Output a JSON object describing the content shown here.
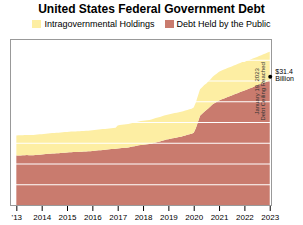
{
  "chart_data": {
    "type": "area",
    "stacked": true,
    "title": "United States Federal Government Debt",
    "x": [
      2013.0,
      2013.083,
      2013.167,
      2013.25,
      2013.333,
      2013.417,
      2013.5,
      2013.583,
      2013.667,
      2013.75,
      2013.833,
      2013.917,
      2014.0,
      2014.083,
      2014.167,
      2014.25,
      2014.333,
      2014.417,
      2014.5,
      2014.583,
      2014.667,
      2014.75,
      2014.833,
      2014.917,
      2015.0,
      2015.083,
      2015.167,
      2015.25,
      2015.333,
      2015.417,
      2015.5,
      2015.583,
      2015.667,
      2015.75,
      2015.833,
      2015.917,
      2016.0,
      2016.083,
      2016.167,
      2016.25,
      2016.333,
      2016.417,
      2016.5,
      2016.583,
      2016.667,
      2016.75,
      2016.833,
      2016.917,
      2017.0,
      2017.083,
      2017.167,
      2017.25,
      2017.333,
      2017.417,
      2017.5,
      2017.583,
      2017.667,
      2017.75,
      2017.833,
      2017.917,
      2018.0,
      2018.083,
      2018.167,
      2018.25,
      2018.333,
      2018.417,
      2018.5,
      2018.583,
      2018.667,
      2018.75,
      2018.833,
      2018.917,
      2019.0,
      2019.083,
      2019.167,
      2019.25,
      2019.333,
      2019.417,
      2019.5,
      2019.583,
      2019.667,
      2019.75,
      2019.833,
      2019.917,
      2020.0,
      2020.083,
      2020.167,
      2020.25,
      2020.333,
      2020.417,
      2020.5,
      2020.583,
      2020.667,
      2020.75,
      2020.833,
      2020.917,
      2021.0,
      2021.083,
      2021.167,
      2021.25,
      2021.333,
      2021.417,
      2021.5,
      2021.583,
      2021.667,
      2021.75,
      2021.833,
      2021.917,
      2022.0,
      2022.083,
      2022.167,
      2022.25,
      2022.333,
      2022.417,
      2022.5,
      2022.583,
      2022.667,
      2022.75,
      2022.833,
      2022.917,
      2023.0
    ],
    "series": [
      {
        "name": "Debt Held by the Public",
        "color": "#C97B6E",
        "values": [
          11.9,
          11.93,
          11.95,
          11.97,
          12.0,
          12.02,
          11.97,
          11.99,
          12.01,
          12.04,
          12.08,
          12.12,
          12.17,
          12.22,
          12.27,
          12.32,
          12.37,
          12.4,
          12.43,
          12.47,
          12.5,
          12.53,
          12.57,
          12.62,
          12.67,
          12.7,
          12.73,
          12.76,
          12.78,
          12.8,
          12.83,
          12.85,
          12.87,
          12.89,
          12.93,
          12.98,
          13.02,
          13.07,
          13.12,
          13.17,
          13.22,
          13.27,
          13.32,
          13.37,
          13.42,
          13.47,
          13.52,
          13.57,
          13.62,
          13.67,
          13.72,
          13.77,
          13.82,
          13.87,
          13.97,
          14.07,
          14.17,
          14.27,
          14.37,
          14.47,
          14.52,
          14.57,
          14.62,
          14.67,
          14.77,
          14.92,
          15.07,
          15.17,
          15.32,
          15.47,
          15.62,
          15.77,
          15.87,
          15.97,
          16.07,
          16.17,
          16.27,
          16.37,
          16.47,
          16.62,
          16.77,
          16.92,
          17.07,
          17.17,
          17.4,
          18.5,
          20.0,
          21.5,
          22.0,
          22.5,
          22.9,
          23.3,
          23.8,
          24.3,
          24.6,
          24.9,
          25.2,
          25.4,
          25.6,
          25.8,
          26.0,
          26.2,
          26.4,
          26.6,
          26.8,
          27.0,
          27.2,
          27.4,
          27.6,
          27.8,
          28.0,
          28.2,
          28.4,
          28.6,
          28.8,
          29.0,
          29.2,
          29.4,
          29.6,
          29.8,
          30.0
        ]
      },
      {
        "name": "Intragovernmental Holdings",
        "color": "#FDEEA3",
        "values": [
          4.85,
          4.85,
          4.86,
          4.86,
          4.87,
          4.87,
          4.88,
          4.88,
          4.88,
          4.89,
          4.89,
          4.9,
          4.9,
          4.9,
          4.91,
          4.91,
          4.91,
          4.92,
          4.92,
          4.93,
          4.93,
          4.93,
          4.94,
          4.95,
          4.95,
          4.95,
          4.96,
          4.96,
          4.96,
          4.97,
          4.97,
          4.98,
          4.98,
          4.99,
          4.99,
          5.0,
          5.0,
          5.0,
          5.01,
          5.01,
          5.01,
          5.02,
          5.02,
          5.02,
          5.03,
          5.03,
          5.04,
          5.05,
          5.55,
          5.58,
          5.6,
          5.62,
          5.64,
          5.67,
          5.69,
          5.71,
          5.73,
          5.75,
          5.77,
          5.79,
          5.8,
          5.81,
          5.82,
          5.84,
          5.86,
          5.87,
          5.88,
          5.89,
          5.9,
          5.91,
          5.92,
          5.93,
          5.94,
          5.95,
          5.96,
          5.97,
          5.98,
          5.99,
          5.99,
          6.0,
          6.0,
          6.0,
          6.01,
          6.02,
          6.1,
          6.2,
          6.3,
          6.4,
          6.4,
          6.4,
          6.4,
          6.5,
          6.5,
          6.6,
          6.7,
          6.8,
          6.9,
          6.95,
          6.97,
          6.98,
          6.99,
          7.0,
          7.0,
          7.01,
          7.01,
          7.02,
          7.02,
          7.03,
          6.85,
          6.87,
          6.87,
          6.88,
          6.88,
          6.89,
          6.89,
          6.9,
          6.9,
          6.91,
          6.91,
          6.92,
          6.93
        ]
      }
    ],
    "xlim": [
      2012.75,
      2023.05
    ],
    "xticks": [
      {
        "value": 2013,
        "label": "'13"
      },
      2014,
      2015,
      2016,
      2017,
      2018,
      2019,
      2020,
      2021,
      2022,
      2023
    ],
    "ylim": [
      0,
      40
    ],
    "yticks": [
      0,
      5,
      10,
      15,
      20,
      25,
      30,
      35,
      40
    ],
    "tick_labels": "x",
    "grid": true,
    "legend": "top",
    "annotations": [
      {
        "text": "January 19, 2023\nDebt Ceiling Reached",
        "x": 2022.6,
        "y": 27.5,
        "orientation": "vertical"
      },
      {
        "text": "$31.4\nBillion",
        "x": 2023.08,
        "y": 31.5,
        "dot": {
          "x": 2023.0,
          "y": 31.0
        }
      }
    ]
  }
}
